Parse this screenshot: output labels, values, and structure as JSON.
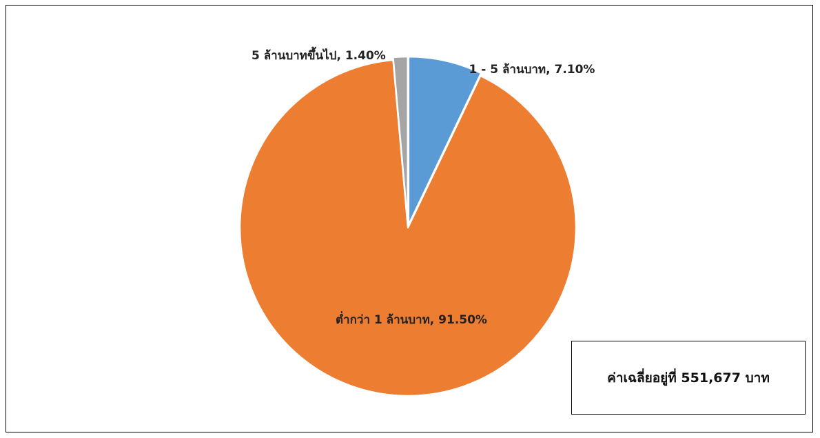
{
  "chart_data": {
    "type": "pie",
    "start": "12 o'clock",
    "direction": "clockwise",
    "slices": [
      {
        "label": "1 - 5 ล้านบาท",
        "value": 7.1,
        "value_text": "7.10%",
        "display": "1 - 5 ล้านบาท, 7.10%",
        "color": "#5B9BD5",
        "exploded": true
      },
      {
        "label": "ต่ำกว่า 1 ล้านบาท",
        "value": 91.5,
        "value_text": "91.50%",
        "display": "ต่ำกว่า 1 ล้านบาท, 91.50%",
        "color": "#ED7D31",
        "exploded": false
      },
      {
        "label": "5 ล้านบาทขึ้นไป",
        "value": 1.4,
        "value_text": "1.40%",
        "display": "5 ล้านบาทขึ้นไป, 1.40%",
        "color": "#A5A5A5",
        "exploded": true
      }
    ]
  },
  "note": {
    "text": "ค่าเฉลี่ยอยู่ที่ 551,677 บาท"
  }
}
